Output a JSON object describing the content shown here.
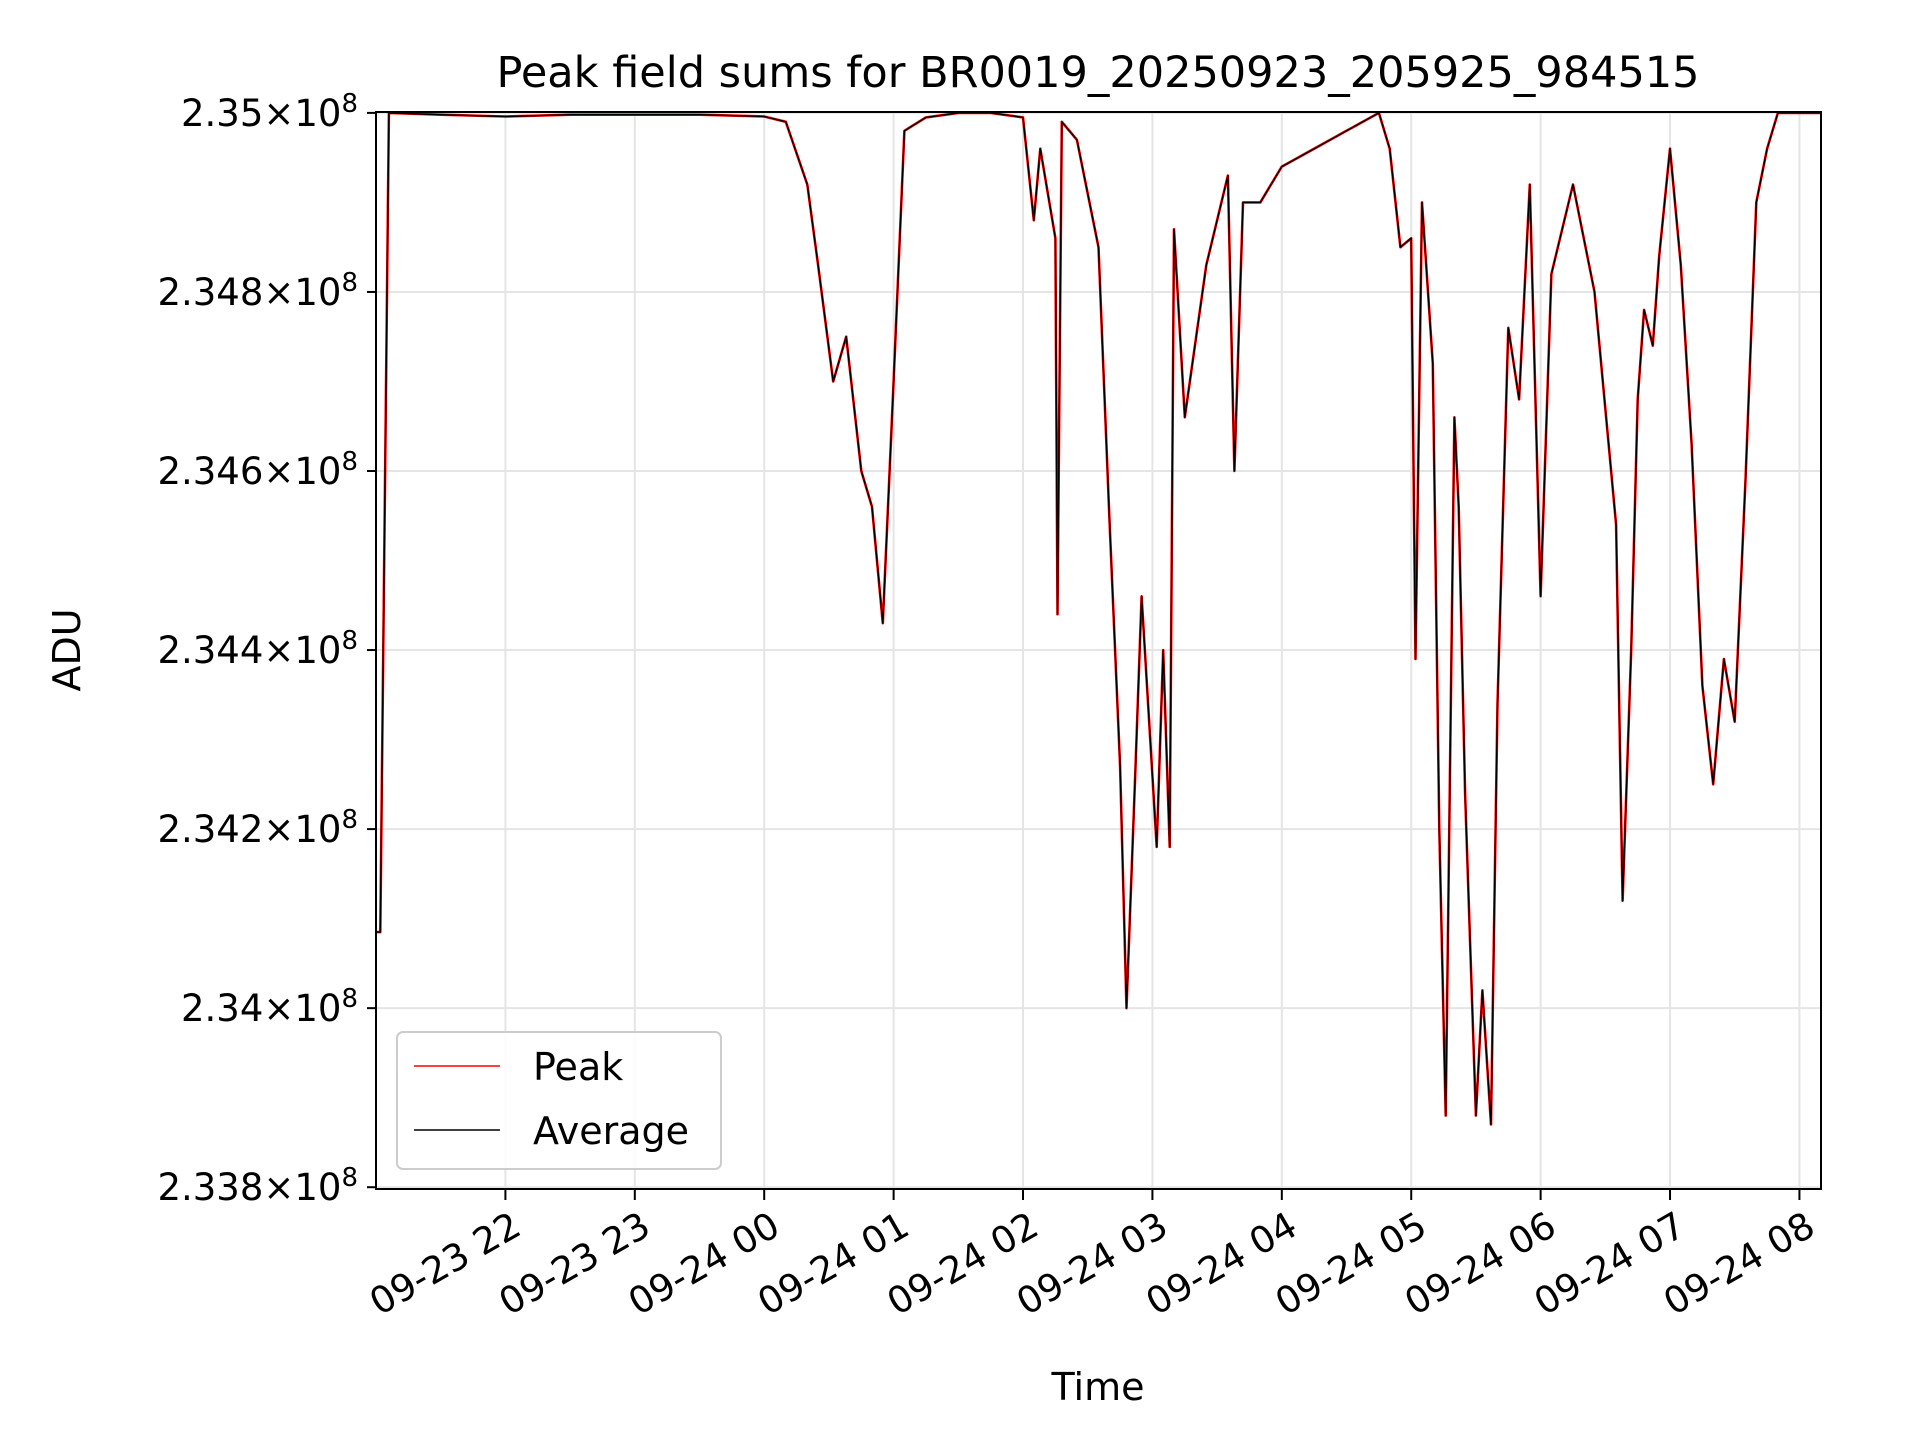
{
  "chart_data": {
    "type": "line",
    "title": "Peak field sums for BR0019_20250923_205925_984515",
    "xlabel": "Time",
    "ylabel": "ADU",
    "x_ticks": [
      "09-23 22",
      "09-23 23",
      "09-24 00",
      "09-24 01",
      "09-24 02",
      "09-24 03",
      "09-24 04",
      "09-24 05",
      "09-24 06",
      "09-24 07",
      "09-24 08"
    ],
    "y_ticks": [
      {
        "value": 233800000,
        "mantissa": "2.338",
        "base": "10",
        "exponent": "8"
      },
      {
        "value": 234000000,
        "mantissa": "2.34",
        "base": "10",
        "exponent": "8"
      },
      {
        "value": 234200000,
        "mantissa": "2.342",
        "base": "10",
        "exponent": "8"
      },
      {
        "value": 234400000,
        "mantissa": "2.344",
        "base": "10",
        "exponent": "8"
      },
      {
        "value": 234600000,
        "mantissa": "2.346",
        "base": "10",
        "exponent": "8"
      },
      {
        "value": 234800000,
        "mantissa": "2.348",
        "base": "10",
        "exponent": "8"
      },
      {
        "value": 235000000,
        "mantissa": "2.35",
        "base": "10",
        "exponent": "8"
      }
    ],
    "ylim": [
      233798000,
      235001000
    ],
    "xlim": [
      "2025-09-23 21:00",
      "2025-09-24 08:10"
    ],
    "grid": true,
    "legend_position": "lower-left",
    "series": [
      {
        "name": "Peak",
        "color": "#ff0000"
      },
      {
        "name": "Average",
        "color": "#000000"
      }
    ],
    "x": [
      "2025-09-23 21:00",
      "2025-09-23 21:02",
      "2025-09-23 21:06",
      "2025-09-23 21:30",
      "2025-09-23 22:00",
      "2025-09-23 22:30",
      "2025-09-23 23:00",
      "2025-09-23 23:30",
      "2025-09-24 00:00",
      "2025-09-24 00:10",
      "2025-09-24 00:20",
      "2025-09-24 00:25",
      "2025-09-24 00:32",
      "2025-09-24 00:38",
      "2025-09-24 00:45",
      "2025-09-24 00:50",
      "2025-09-24 00:55",
      "2025-09-24 01:00",
      "2025-09-24 01:05",
      "2025-09-24 01:15",
      "2025-09-24 01:30",
      "2025-09-24 01:45",
      "2025-09-24 02:00",
      "2025-09-24 02:05",
      "2025-09-24 02:08",
      "2025-09-24 02:15",
      "2025-09-24 02:16",
      "2025-09-24 02:18",
      "2025-09-24 02:25",
      "2025-09-24 02:35",
      "2025-09-24 02:40",
      "2025-09-24 02:45",
      "2025-09-24 02:48",
      "2025-09-24 02:52",
      "2025-09-24 02:55",
      "2025-09-24 03:00",
      "2025-09-24 03:02",
      "2025-09-24 03:05",
      "2025-09-24 03:08",
      "2025-09-24 03:10",
      "2025-09-24 03:15",
      "2025-09-24 03:25",
      "2025-09-24 03:35",
      "2025-09-24 03:38",
      "2025-09-24 03:42",
      "2025-09-24 03:50",
      "2025-09-24 04:00",
      "2025-09-24 04:15",
      "2025-09-24 04:30",
      "2025-09-24 04:45",
      "2025-09-24 04:50",
      "2025-09-24 04:55",
      "2025-09-24 05:00",
      "2025-09-24 05:02",
      "2025-09-24 05:05",
      "2025-09-24 05:10",
      "2025-09-24 05:13",
      "2025-09-24 05:16",
      "2025-09-24 05:20",
      "2025-09-24 05:22",
      "2025-09-24 05:25",
      "2025-09-24 05:30",
      "2025-09-24 05:33",
      "2025-09-24 05:37",
      "2025-09-24 05:40",
      "2025-09-24 05:45",
      "2025-09-24 05:50",
      "2025-09-24 05:55",
      "2025-09-24 06:00",
      "2025-09-24 06:05",
      "2025-09-24 06:15",
      "2025-09-24 06:25",
      "2025-09-24 06:35",
      "2025-09-24 06:38",
      "2025-09-24 06:42",
      "2025-09-24 06:45",
      "2025-09-24 06:48",
      "2025-09-24 06:52",
      "2025-09-24 06:55",
      "2025-09-24 07:00",
      "2025-09-24 07:05",
      "2025-09-24 07:10",
      "2025-09-24 07:15",
      "2025-09-24 07:20",
      "2025-09-24 07:25",
      "2025-09-24 07:30",
      "2025-09-24 07:35",
      "2025-09-24 07:40",
      "2025-09-24 07:45",
      "2025-09-24 07:50",
      "2025-09-24 07:55",
      "2025-09-24 08:00",
      "2025-09-24 08:05",
      "2025-09-24 08:10"
    ],
    "values_average": [
      234085000,
      234085000,
      235000000,
      234998000,
      234996000,
      234998000,
      234998000,
      234998000,
      234996000,
      234990000,
      234920000,
      234830000,
      234700000,
      234750000,
      234600000,
      234560000,
      234430000,
      234700000,
      234980000,
      234995000,
      235000000,
      235000000,
      234995000,
      234880000,
      234960000,
      234860000,
      234440000,
      234990000,
      234970000,
      234850000,
      234550000,
      234270000,
      234000000,
      234260000,
      234460000,
      234260000,
      234180000,
      234400000,
      234180000,
      234870000,
      234660000,
      234830000,
      234930000,
      234600000,
      234900000,
      234900000,
      234940000,
      234960000,
      234980000,
      235000000,
      234960000,
      234850000,
      234860000,
      234390000,
      234900000,
      234720000,
      234200000,
      233880000,
      234660000,
      234560000,
      234240000,
      233880000,
      234020000,
      233870000,
      234340000,
      234760000,
      234680000,
      234920000,
      234460000,
      234820000,
      234920000,
      234800000,
      234540000,
      234120000,
      234400000,
      234680000,
      234780000,
      234740000,
      234840000,
      234960000,
      234830000,
      234630000,
      234360000,
      234250000,
      234390000,
      234320000,
      234590000,
      234900000,
      234960000,
      235000000,
      235000000,
      235000000,
      235000000,
      235000000
    ]
  }
}
